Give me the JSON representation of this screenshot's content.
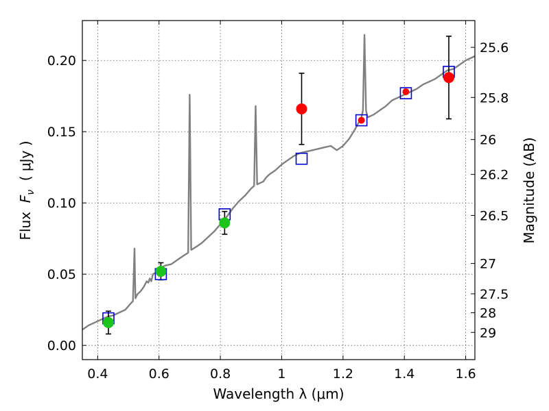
{
  "chart_data": {
    "type": "scatter",
    "title": "",
    "xlabel": "Wavelength  λ (μm)",
    "ylabel": "Flux  F_ν  ( μJy )",
    "ylabel_parts": {
      "prefix": "Flux  ",
      "symbol": "F",
      "subscript": "ν",
      "unit": "  ( μJy )"
    },
    "ylabel_right": "Magnitude (AB)",
    "xlim": [
      0.35,
      1.63
    ],
    "ylim": [
      -0.01,
      0.228
    ],
    "grid": true,
    "x_ticks": [
      {
        "value": 0.4,
        "label": "0.4"
      },
      {
        "value": 0.6,
        "label": "0.6"
      },
      {
        "value": 0.8,
        "label": "0.8"
      },
      {
        "value": 1.0,
        "label": "1"
      },
      {
        "value": 1.2,
        "label": "1.2"
      },
      {
        "value": 1.4,
        "label": "1.4"
      },
      {
        "value": 1.6,
        "label": "1.6"
      }
    ],
    "y_ticks": [
      {
        "value": 0.0,
        "label": "0.00"
      },
      {
        "value": 0.05,
        "label": "0.05"
      },
      {
        "value": 0.1,
        "label": "0.10"
      },
      {
        "value": 0.15,
        "label": "0.15"
      },
      {
        "value": 0.2,
        "label": "0.20"
      }
    ],
    "mag_ticks": [
      {
        "flux": 0.2092,
        "label": "25.6"
      },
      {
        "flux": 0.174,
        "label": "25.8"
      },
      {
        "flux": 0.1445,
        "label": "26"
      },
      {
        "flux": 0.12,
        "label": "26.2"
      },
      {
        "flux": 0.0912,
        "label": "26.5"
      },
      {
        "flux": 0.0575,
        "label": "27"
      },
      {
        "flux": 0.0362,
        "label": "27.5"
      },
      {
        "flux": 0.0229,
        "label": "28"
      },
      {
        "flux": 0.0091,
        "label": "29"
      }
    ],
    "series": [
      {
        "type": "line",
        "color": "#808080",
        "points": [
          [
            0.35,
            0.011
          ],
          [
            0.37,
            0.014
          ],
          [
            0.39,
            0.016
          ],
          [
            0.41,
            0.018
          ],
          [
            0.43,
            0.02
          ],
          [
            0.45,
            0.021
          ],
          [
            0.47,
            0.023
          ],
          [
            0.49,
            0.025
          ],
          [
            0.51,
            0.03
          ],
          [
            0.515,
            0.031
          ],
          [
            0.52,
            0.068
          ],
          [
            0.523,
            0.033
          ],
          [
            0.53,
            0.036
          ],
          [
            0.54,
            0.038
          ],
          [
            0.55,
            0.041
          ],
          [
            0.56,
            0.045
          ],
          [
            0.565,
            0.044
          ],
          [
            0.57,
            0.047
          ],
          [
            0.575,
            0.045
          ],
          [
            0.58,
            0.05
          ],
          [
            0.59,
            0.051
          ],
          [
            0.6,
            0.053
          ],
          [
            0.61,
            0.055
          ],
          [
            0.62,
            0.056
          ],
          [
            0.64,
            0.057
          ],
          [
            0.66,
            0.06
          ],
          [
            0.68,
            0.063
          ],
          [
            0.695,
            0.065
          ],
          [
            0.7,
            0.176
          ],
          [
            0.705,
            0.067
          ],
          [
            0.72,
            0.069
          ],
          [
            0.74,
            0.072
          ],
          [
            0.76,
            0.076
          ],
          [
            0.78,
            0.08
          ],
          [
            0.8,
            0.085
          ],
          [
            0.82,
            0.09
          ],
          [
            0.84,
            0.096
          ],
          [
            0.86,
            0.101
          ],
          [
            0.88,
            0.105
          ],
          [
            0.9,
            0.11
          ],
          [
            0.91,
            0.112
          ],
          [
            0.915,
            0.168
          ],
          [
            0.92,
            0.113
          ],
          [
            0.93,
            0.114
          ],
          [
            0.94,
            0.115
          ],
          [
            0.95,
            0.118
          ],
          [
            0.96,
            0.12
          ],
          [
            0.98,
            0.123
          ],
          [
            1.0,
            0.127
          ],
          [
            1.02,
            0.13
          ],
          [
            1.04,
            0.133
          ],
          [
            1.06,
            0.135
          ],
          [
            1.08,
            0.136
          ],
          [
            1.1,
            0.137
          ],
          [
            1.12,
            0.138
          ],
          [
            1.14,
            0.139
          ],
          [
            1.16,
            0.14
          ],
          [
            1.18,
            0.137
          ],
          [
            1.2,
            0.14
          ],
          [
            1.22,
            0.145
          ],
          [
            1.24,
            0.152
          ],
          [
            1.26,
            0.16
          ],
          [
            1.265,
            0.165
          ],
          [
            1.27,
            0.218
          ],
          [
            1.275,
            0.165
          ],
          [
            1.28,
            0.16
          ],
          [
            1.3,
            0.162
          ],
          [
            1.32,
            0.165
          ],
          [
            1.34,
            0.168
          ],
          [
            1.36,
            0.172
          ],
          [
            1.38,
            0.174
          ],
          [
            1.4,
            0.176
          ],
          [
            1.42,
            0.178
          ],
          [
            1.44,
            0.18
          ],
          [
            1.46,
            0.183
          ],
          [
            1.48,
            0.185
          ],
          [
            1.5,
            0.187
          ],
          [
            1.52,
            0.19
          ],
          [
            1.54,
            0.193
          ],
          [
            1.56,
            0.194
          ],
          [
            1.58,
            0.197
          ],
          [
            1.6,
            0.2
          ],
          [
            1.62,
            0.202
          ],
          [
            1.63,
            0.203
          ]
        ]
      },
      {
        "type": "scatter",
        "marker": "circle",
        "color": "#1ec41e",
        "points": [
          {
            "x": 0.435,
            "y": 0.016,
            "err": 0.008
          },
          {
            "x": 0.606,
            "y": 0.052,
            "err": 0.006
          },
          {
            "x": 0.814,
            "y": 0.086,
            "err": 0.008
          }
        ]
      },
      {
        "type": "scatter",
        "marker": "circle",
        "color": "#ff0000",
        "points": [
          {
            "x": 1.065,
            "y": 0.166,
            "err": 0.025
          },
          {
            "x": 1.26,
            "y": 0.158
          },
          {
            "x": 1.405,
            "y": 0.178
          },
          {
            "x": 1.545,
            "y": 0.188,
            "err": 0.029
          }
        ]
      },
      {
        "type": "scatter",
        "marker": "square",
        "color": "#0000cc",
        "points": [
          {
            "x": 0.435,
            "y": 0.019
          },
          {
            "x": 0.606,
            "y": 0.05
          },
          {
            "x": 0.814,
            "y": 0.092
          },
          {
            "x": 1.065,
            "y": 0.131
          },
          {
            "x": 1.26,
            "y": 0.158
          },
          {
            "x": 1.405,
            "y": 0.177
          },
          {
            "x": 1.545,
            "y": 0.192
          }
        ]
      }
    ]
  }
}
